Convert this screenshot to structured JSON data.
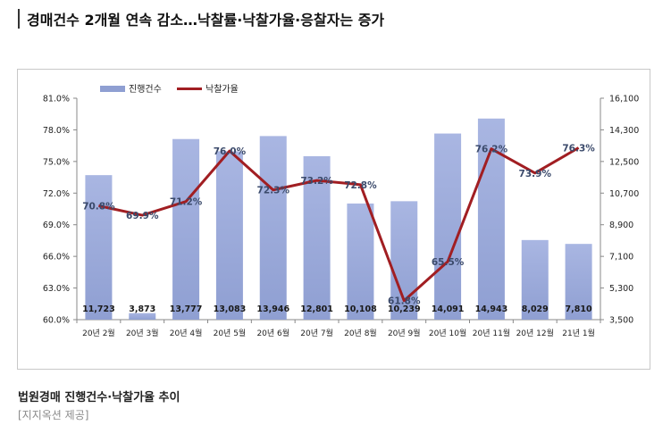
{
  "headline": "경매건수 2개월 연속 감소…낙찰률·낙찰가율·응찰자는 증가",
  "caption": "법원경매 진행건수·낙찰가율 추이",
  "credit": "[지지옥션 제공]",
  "chart_data": {
    "type": "bar",
    "categories": [
      "20년 2월",
      "20년 3월",
      "20년 4월",
      "20년 5월",
      "20년 6월",
      "20년 7월",
      "20년 8월",
      "20년 9월",
      "20년 10월",
      "20년 11월",
      "20년 12월",
      "21년 1월"
    ],
    "series": [
      {
        "name": "진행건수",
        "type": "bar",
        "axis": "right",
        "color": "#8f9fd2",
        "values": [
          11723,
          3873,
          13777,
          13083,
          13946,
          12801,
          10108,
          10239,
          14091,
          14943,
          8029,
          7810
        ],
        "labels": [
          "11,723",
          "3,873",
          "13,777",
          "13,083",
          "13,946",
          "12,801",
          "10,108",
          "10,239",
          "14,091",
          "14,943",
          "8,029",
          "7,810"
        ]
      },
      {
        "name": "낙찰가율",
        "type": "line",
        "axis": "left",
        "color": "#a11e22",
        "values": [
          70.8,
          69.9,
          71.2,
          76.0,
          72.3,
          73.2,
          72.8,
          61.8,
          65.5,
          76.2,
          73.9,
          76.3
        ],
        "labels": [
          "70.8%",
          "69.9%",
          "71.2%",
          "76.0%",
          "72.3%",
          "73.2%",
          "72.8%",
          "61.8%",
          "65.5%",
          "76.2%",
          "73.9%",
          "76.3%"
        ]
      }
    ],
    "y_left": {
      "min": 60.0,
      "max": 81.0,
      "ticks": [
        "81.0%",
        "78.0%",
        "75.0%",
        "72.0%",
        "69.0%",
        "66.0%",
        "63.0%",
        "60.0%"
      ]
    },
    "y_right": {
      "min": 3500,
      "max": 16100,
      "ticks": [
        "16,100",
        "14,300",
        "12,500",
        "10,700",
        "8,900",
        "7,100",
        "5,300",
        "3,500"
      ]
    },
    "legend": {
      "position": "top-left"
    },
    "grid": false
  }
}
